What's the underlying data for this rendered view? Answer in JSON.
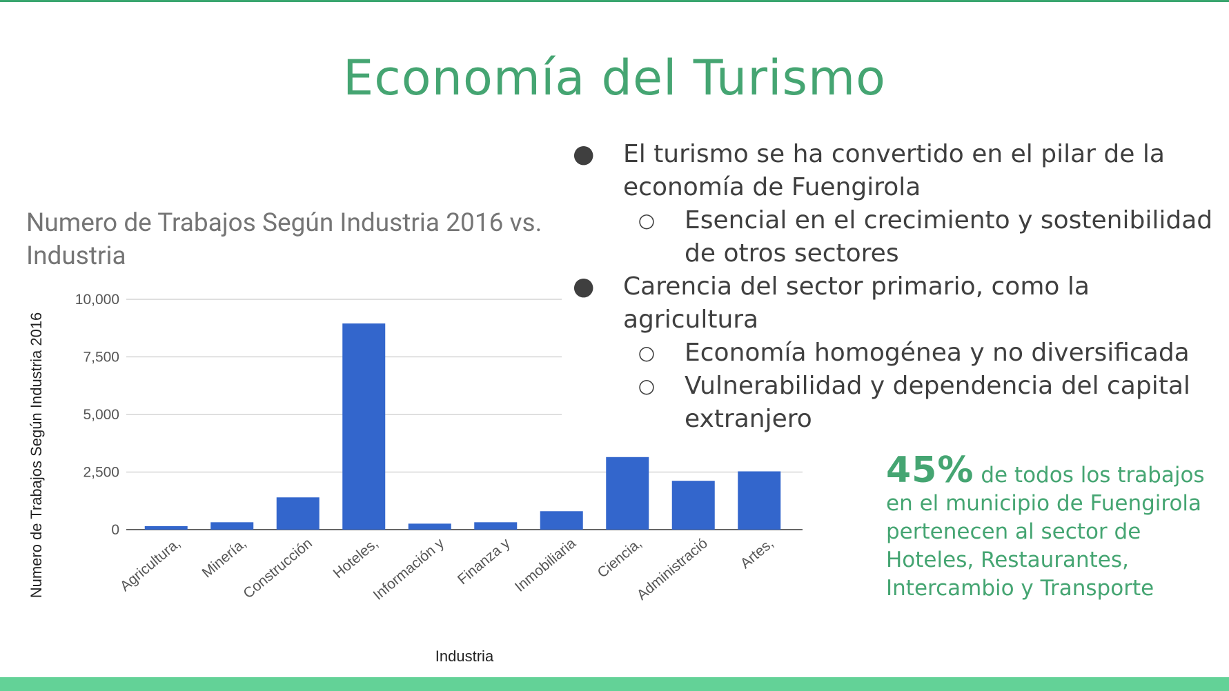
{
  "slide": {
    "title": "Economía del Turismo",
    "bullets": [
      {
        "level": 1,
        "marker": "●",
        "text": "El turismo se ha convertido en el pilar de la economía de Fuengirola"
      },
      {
        "level": 2,
        "marker": "○",
        "text": "Esencial en el crecimiento y sostenibilidad de otros sectores"
      },
      {
        "level": 1,
        "marker": "●",
        "text": "Carencia del sector primario, como la agricultura"
      },
      {
        "level": 2,
        "marker": "○",
        "text": "Economía homogénea y no diversificada"
      },
      {
        "level": 2,
        "marker": "○",
        "text": "Vulnerabilidad y dependencia del capital extranjero"
      }
    ],
    "stat": {
      "highlight": "45%",
      "text": "de todos los trabajos en el municipio de Fuengirola pertenecen al sector de Hoteles, Restaurantes, Intercambio y Transporte"
    }
  },
  "colors": {
    "accent_green": "#45a572",
    "band_green": "#63d297",
    "bar_blue": "#3366cc",
    "text_gray": "#3f3f3f",
    "chart_title_gray": "#757575"
  },
  "chart_data": {
    "type": "bar",
    "title": "Numero de Trabajos Según Industria 2016 vs. Industria",
    "xlabel": "Industria",
    "ylabel": "Numero de Trabajos Según Industria 2016",
    "ylim": [
      0,
      10000
    ],
    "yticks": [
      "0",
      "2,500",
      "5,000",
      "7,500",
      "10,000"
    ],
    "ytick_values": [
      0,
      2500,
      5000,
      7500,
      10000
    ],
    "categories": [
      "Agricultura,",
      "Minería,",
      "Construcción",
      "Hoteles,",
      "Información y",
      "Finanza y",
      "Inmobiliaria",
      "Ciencia,",
      "Administració",
      "Artes,"
    ],
    "series": [
      {
        "values": [
          150,
          320,
          1400,
          8950,
          260,
          320,
          800,
          3150,
          2120,
          2530
        ]
      }
    ],
    "grid": true,
    "legend": "none"
  }
}
